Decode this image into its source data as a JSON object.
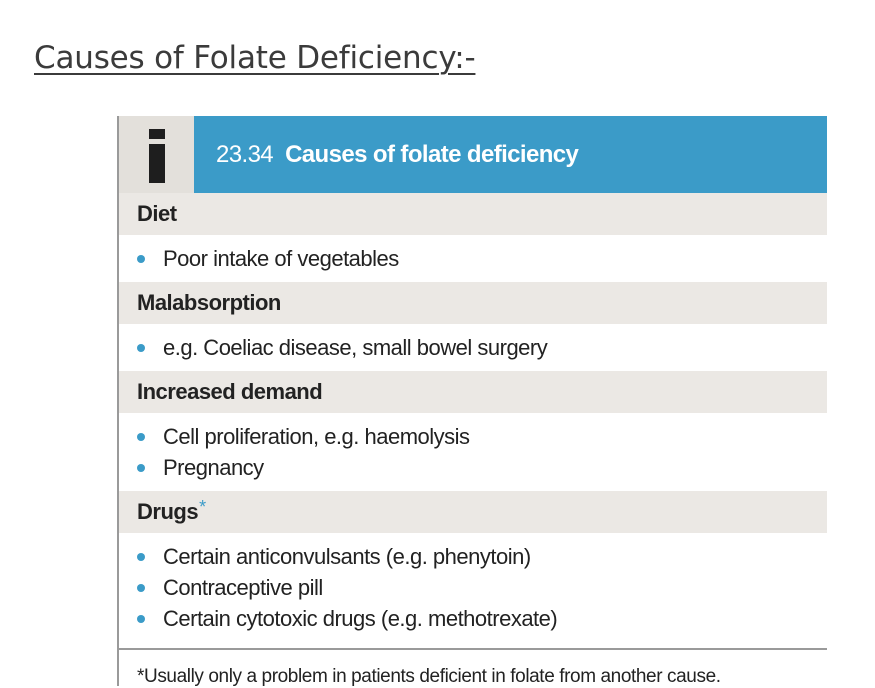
{
  "page": {
    "title": "Causes of Folate Deficiency:-"
  },
  "box": {
    "number": "23.34",
    "title": "Causes of folate deficiency",
    "info_icon": "info-i-icon",
    "accent_color": "#3b9bc8",
    "sections": [
      {
        "heading": "Diet",
        "items": [
          "Poor intake of vegetables"
        ]
      },
      {
        "heading": "Malabsorption",
        "items": [
          "e.g. Coeliac disease, small bowel surgery"
        ]
      },
      {
        "heading": "Increased demand",
        "items": [
          "Cell proliferation, e.g. haemolysis",
          "Pregnancy"
        ]
      },
      {
        "heading": "Drugs",
        "asterisk": "*",
        "items": [
          "Certain anticonvulsants (e.g. phenytoin)",
          "Contraceptive pill",
          "Certain cytotoxic drugs (e.g. methotrexate)"
        ]
      }
    ],
    "footnote": "*Usually only a problem in patients deficient in folate from another cause."
  }
}
